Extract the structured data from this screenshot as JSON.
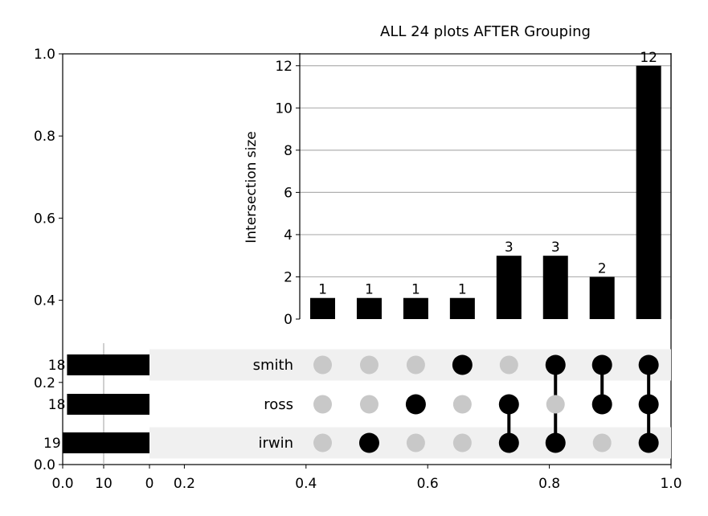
{
  "title": "ALL 24 plots AFTER Grouping",
  "chart_data": {
    "type": "upset",
    "title": "ALL 24 plots AFTER Grouping",
    "ylabel": "Intersection size",
    "ylim": [
      0,
      12.6
    ],
    "yticks": [
      "0",
      "2",
      "4",
      "6",
      "8",
      "10",
      "12"
    ],
    "sets": [
      {
        "name": "smith",
        "size": 18,
        "size_label": "18"
      },
      {
        "name": "ross",
        "size": 18,
        "size_label": "18"
      },
      {
        "name": "irwin",
        "size": 19,
        "size_label": "19"
      }
    ],
    "set_size_ticks": [
      "10",
      "0"
    ],
    "intersections": [
      {
        "members": [],
        "value": 1,
        "label": "1"
      },
      {
        "members": [
          "irwin"
        ],
        "value": 1,
        "label": "1"
      },
      {
        "members": [
          "ross"
        ],
        "value": 1,
        "label": "1"
      },
      {
        "members": [
          "smith"
        ],
        "value": 1,
        "label": "1"
      },
      {
        "members": [
          "ross",
          "irwin"
        ],
        "value": 3,
        "label": "3"
      },
      {
        "members": [
          "smith",
          "irwin"
        ],
        "value": 3,
        "label": "3"
      },
      {
        "members": [
          "smith",
          "ross"
        ],
        "value": 2,
        "label": "2"
      },
      {
        "members": [
          "smith",
          "ross",
          "irwin"
        ],
        "value": 12,
        "label": "12"
      }
    ],
    "outer_axes": {
      "yticks": [
        "0.0",
        "0.2",
        "0.4",
        "0.6",
        "0.8",
        "1.0"
      ],
      "xticks": [
        "0.0",
        "0.2",
        "0.4",
        "0.6",
        "0.8",
        "1.0"
      ]
    },
    "colors": {
      "bar": "#000000",
      "active_dot": "#000000",
      "inactive_dot": "#c8c8c8",
      "stripe": "#f0f0f0",
      "grid": "#b0b0b0"
    },
    "grid": true
  }
}
